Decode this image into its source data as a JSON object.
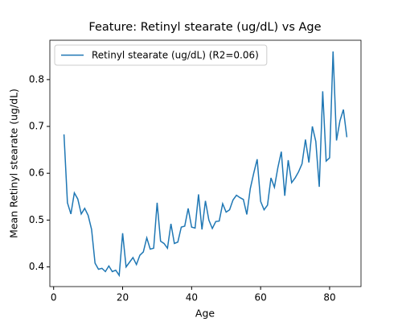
{
  "chart_data": {
    "type": "line",
    "title": "Feature: Retinyl stearate (ug/dL) vs Age",
    "xlabel": "Age",
    "ylabel": "Mean Retinyl stearate (ug/dL)",
    "x": [
      3,
      4,
      5,
      6,
      7,
      8,
      9,
      10,
      11,
      12,
      13,
      14,
      15,
      16,
      17,
      18,
      19,
      20,
      21,
      22,
      23,
      24,
      25,
      26,
      27,
      28,
      29,
      30,
      31,
      32,
      33,
      34,
      35,
      36,
      37,
      38,
      39,
      40,
      41,
      42,
      43,
      44,
      45,
      46,
      47,
      48,
      49,
      50,
      51,
      52,
      53,
      54,
      55,
      56,
      57,
      58,
      59,
      60,
      61,
      62,
      63,
      64,
      65,
      66,
      67,
      68,
      69,
      70,
      71,
      72,
      73,
      74,
      75,
      76,
      77,
      78,
      79,
      80,
      81,
      82,
      83,
      84,
      85
    ],
    "series": [
      {
        "name": "Retinyl stearate (ug/dL) (R2=0.06)",
        "color": "#1f77b4",
        "values": [
          0.683,
          0.537,
          0.513,
          0.558,
          0.545,
          0.513,
          0.525,
          0.51,
          0.48,
          0.408,
          0.395,
          0.397,
          0.39,
          0.402,
          0.39,
          0.393,
          0.382,
          0.472,
          0.4,
          0.41,
          0.42,
          0.405,
          0.425,
          0.432,
          0.462,
          0.438,
          0.44,
          0.537,
          0.455,
          0.45,
          0.44,
          0.492,
          0.45,
          0.453,
          0.485,
          0.487,
          0.525,
          0.485,
          0.483,
          0.555,
          0.48,
          0.541,
          0.5,
          0.482,
          0.497,
          0.498,
          0.535,
          0.517,
          0.522,
          0.543,
          0.553,
          0.548,
          0.544,
          0.512,
          0.567,
          0.6,
          0.63,
          0.54,
          0.522,
          0.532,
          0.59,
          0.57,
          0.612,
          0.646,
          0.552,
          0.628,
          0.58,
          0.59,
          0.603,
          0.62,
          0.672,
          0.623,
          0.7,
          0.668,
          0.571,
          0.775,
          0.626,
          0.633,
          0.86,
          0.67,
          0.712,
          0.736,
          0.677
        ]
      }
    ],
    "xlim": [
      -1.1,
      89.1
    ],
    "ylim": [
      0.358,
      0.884
    ],
    "xticks": [
      0,
      20,
      40,
      60,
      80
    ],
    "yticks": [
      0.4,
      0.5,
      0.6,
      0.7,
      0.8
    ],
    "legend": "upper left"
  }
}
